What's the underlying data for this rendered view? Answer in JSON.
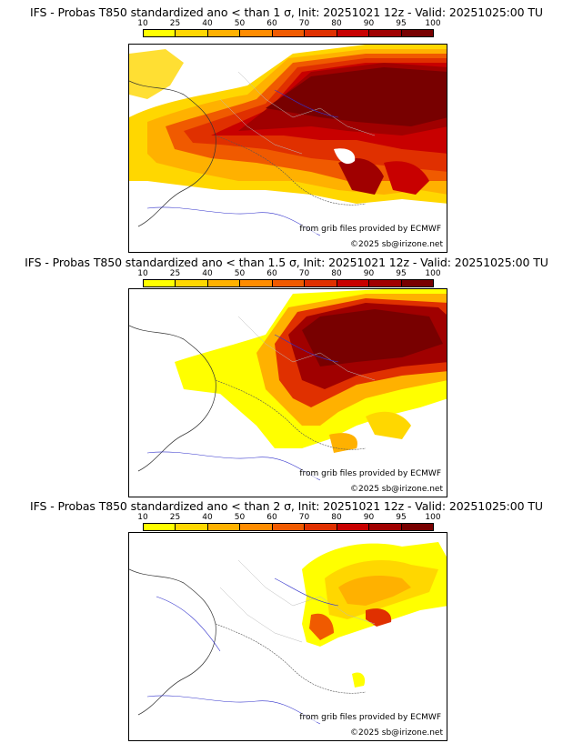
{
  "legend": {
    "ticks": [
      "10",
      "25",
      "40",
      "50",
      "60",
      "70",
      "80",
      "90",
      "95",
      "100"
    ],
    "colors": [
      "#ffff00",
      "#ffd700",
      "#ffb100",
      "#ff8c00",
      "#f05a00",
      "#e03000",
      "#c80000",
      "#a00000",
      "#780000"
    ]
  },
  "panels": [
    {
      "title": "IFS - Probas T850  standardized ano < than 1 σ, Init: 20251021 12z - Valid: 20251025:00 TU",
      "credit_source": "from grib files provided by ECMWF",
      "credit_copyright": "©2025 sb@irizone.net"
    },
    {
      "title": "IFS - Probas T850  standardized ano < than 1.5 σ, Init: 20251021 12z - Valid: 20251025:00 TU",
      "credit_source": "from grib files provided by ECMWF",
      "credit_copyright": "©2025 sb@irizone.net"
    },
    {
      "title": "IFS - Probas T850  standardized ano < than 2 σ, Init: 20251021 12z - Valid: 20251025:00 TU",
      "credit_source": "from grib files provided by ECMWF",
      "credit_copyright": "©2025 sb@irizone.net"
    }
  ]
}
